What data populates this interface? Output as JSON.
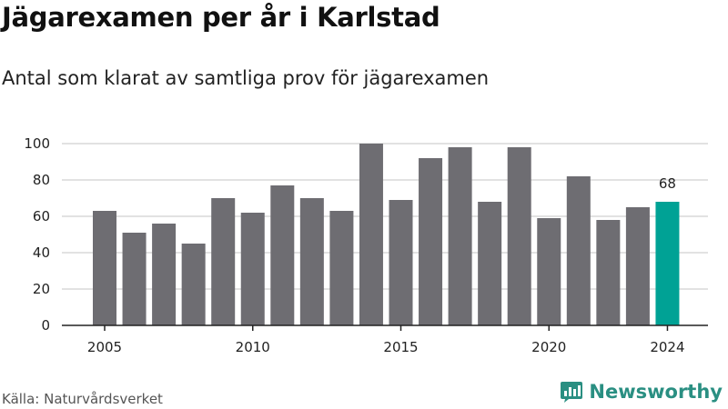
{
  "header": {
    "title": "Jägarexamen per år i Karlstad",
    "subtitle": "Antal som klarat av samtliga prov för jägarexamen"
  },
  "footer": {
    "source": "Källa: Naturvårdsverket",
    "brand": "Newsworthy",
    "brand_icon": "bar-chart-logo-icon"
  },
  "colors": {
    "bar": "#6e6d72",
    "highlight": "#00a295",
    "grid": "#d9d9d9",
    "axis": "#222222",
    "brand": "#2a8f82"
  },
  "chart_data": {
    "type": "bar",
    "x": [
      2005,
      2006,
      2007,
      2008,
      2009,
      2010,
      2011,
      2012,
      2013,
      2014,
      2015,
      2016,
      2017,
      2018,
      2019,
      2020,
      2021,
      2022,
      2023,
      2024
    ],
    "values": [
      63,
      51,
      56,
      45,
      70,
      62,
      77,
      70,
      63,
      100,
      69,
      92,
      98,
      68,
      98,
      59,
      82,
      58,
      65,
      68
    ],
    "highlight": {
      "x": 2024,
      "label": "68"
    },
    "xticks": [
      "2005",
      "2010",
      "2015",
      "2020",
      "2024"
    ],
    "yticks": [
      "0",
      "20",
      "40",
      "60",
      "80",
      "100"
    ],
    "ylim": [
      0,
      100
    ],
    "grid": true
  }
}
